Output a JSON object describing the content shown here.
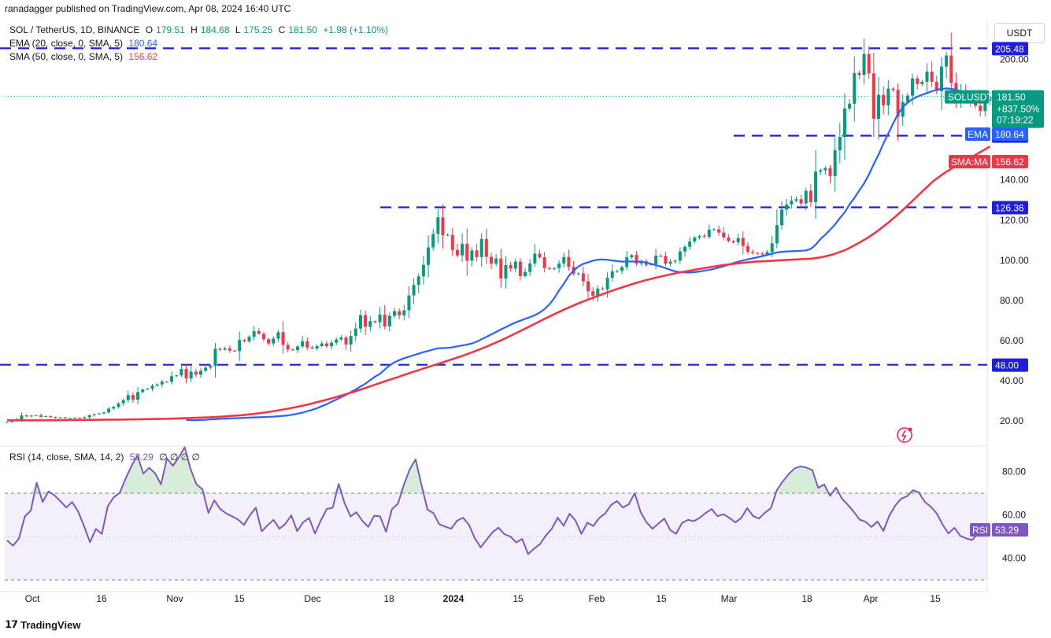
{
  "header": {
    "credit": "ranadagger published on TradingView.com, Apr 08, 2024 16:40 UTC",
    "currency_button": "USDT"
  },
  "legend": {
    "title": "SOL / TetherUS, 1D, BINANCE",
    "open_label": "O",
    "open": "179.51",
    "high_label": "H",
    "high": "184.68",
    "low_label": "L",
    "low": "175.25",
    "close_label": "C",
    "close": "181.50",
    "change": "+1.98 (+1.10%)",
    "ema_label": "EMA (20, close, 0, SMA, 5)",
    "ema_value": "180.64",
    "sma_label": "SMA (50, close, 0, SMA, 5)",
    "sma_value": "156.62",
    "rsi_label": "RSI (14, close, SMA, 14, 2)",
    "rsi_value": "53.29",
    "rsi_extra": "∅ ∅ ∅ ∅"
  },
  "footer": {
    "brand": "TradingView"
  },
  "colors": {
    "up": "#089981",
    "down": "#f23645",
    "ema": "#2962ff",
    "sma": "#f23645",
    "rsi": "#7e57c2",
    "level": "#1e1edc"
  },
  "chart_data": [
    {
      "type": "candlestick",
      "symbol": "SOLUSDT",
      "x_ticks": [
        "Oct",
        "16",
        "Nov",
        "15",
        "Dec",
        "18",
        "2024",
        "15",
        "Feb",
        "15",
        "Mar",
        "18",
        "Apr",
        "15"
      ],
      "y_ticks": [
        "20.00",
        "40.00",
        "60.00",
        "80.00",
        "100.00",
        "120.00",
        "140.00",
        "160.00",
        "180.00",
        "200.00"
      ],
      "ylim": [
        0,
        215
      ],
      "price_tag": {
        "label": "SOLUSDT",
        "value": "181.50",
        "change": "+837.50%",
        "countdown": "07:19:22"
      },
      "ema_tag": {
        "label": "EMA",
        "value": "180.64"
      },
      "sma_tag": {
        "label": "SMA:MA",
        "value": "156.62"
      },
      "levels": [
        {
          "value": 205.48,
          "label": "205.48"
        },
        {
          "value": 162.0,
          "label": "162.00"
        },
        {
          "value": 126.36,
          "label": "126.36"
        },
        {
          "value": 48.0,
          "label": "48.00"
        }
      ],
      "closes": [
        19.5,
        19.9,
        20.8,
        22.8,
        22.3,
        22.7,
        22.9,
        22.1,
        22.4,
        22.0,
        21.6,
        21.8,
        21.5,
        21.5,
        21.7,
        21.5,
        21.9,
        22.9,
        23.4,
        23.8,
        24.3,
        26.2,
        27.1,
        28.8,
        30.4,
        32.9,
        30.6,
        34.4,
        35.7,
        36.1,
        37.6,
        38.2,
        39.7,
        39.5,
        42.3,
        42.7,
        45.9,
        41.2,
        44.6,
        43.1,
        45.0,
        46.6,
        47.5,
        56.0,
        55.5,
        56.2,
        55.0,
        54.8,
        60.3,
        59.7,
        61.9,
        64.7,
        63.4,
        60.7,
        58.6,
        61.0,
        64.2,
        57.9,
        55.6,
        55.3,
        57.1,
        59.7,
        56.6,
        56.1,
        57.3,
        58.6,
        57.2,
        59.0,
        60.6,
        61.6,
        58.1,
        62.3,
        66.0,
        72.7,
        66.9,
        69.7,
        69.2,
        73.0,
        67.1,
        72.4,
        74.7,
        72.6,
        75.1,
        82.5,
        87.7,
        92.0,
        97.7,
        106.4,
        113.1,
        121.4,
        112.5,
        112.6,
        105.1,
        102.4,
        108.2,
        99.8,
        104.9,
        101.6,
        110.6,
        101.7,
        98.3,
        100.9,
        90.9,
        97.6,
        95.9,
        99.3,
        92.1,
        94.2,
        98.4,
        103.3,
        101.5,
        96.1,
        95.7,
        96.1,
        98.4,
        101.6,
        96.7,
        93.3,
        93.5,
        89.5,
        84.6,
        82.4,
        85.9,
        85.5,
        91.3,
        94.5,
        94.7,
        96.6,
        101.5,
        102.6,
        98.4,
        99.5,
        97.7,
        98.0,
        102.3,
        102.2,
        98.3,
        99.3,
        99.8,
        104.4,
        106.7,
        109.4,
        111.3,
        112.0,
        111.6,
        115.3,
        115.4,
        113.8,
        111.4,
        109.6,
        108.9,
        111.1,
        107.1,
        104.2,
        103.7,
        103.4,
        102.9,
        104.1,
        108.4,
        117.5,
        125.2,
        127.8,
        129.6,
        130.4,
        128.3,
        134.6,
        128.9,
        144.1,
        144.8,
        145.9,
        141.9,
        154.7,
        161.4,
        175.5,
        177.9,
        193.2,
        192.2,
        202.6,
        193.0,
        170.4,
        182.3,
        177.1,
        185.4,
        184.8,
        171.5,
        178.8,
        181.9,
        190.5,
        187.7,
        188.8,
        193.9,
        188.8,
        184.2,
        196.4,
        201.9,
        188.3,
        179.9,
        183.8,
        181.2,
        178.7,
        176.9,
        174.2,
        179.4,
        181.5
      ],
      "ema20": [
        20.5,
        20.4,
        20.4,
        20.5,
        20.6,
        20.8,
        20.9,
        21.1,
        21.2,
        21.3,
        21.4,
        21.5,
        21.6,
        21.7,
        21.8,
        21.9,
        22.0,
        22.1,
        22.2,
        22.4,
        22.6,
        22.8,
        23.2,
        23.7,
        24.2,
        24.9,
        25.6,
        26.4,
        27.4,
        28.4,
        29.6,
        30.7,
        31.9,
        33.0,
        34.4,
        35.7,
        37.2,
        38.6,
        40.4,
        42.1,
        43.5,
        45.6,
        47.7,
        49.2,
        50.3,
        51.3,
        52.0,
        52.8,
        53.5,
        54.3,
        54.9,
        55.6,
        56.2,
        56.3,
        56.4,
        56.7,
        57.2,
        57.6,
        58.0,
        58.6,
        59.5,
        60.7,
        61.9,
        63.1,
        64.3,
        65.6,
        66.7,
        67.9,
        69.0,
        69.9,
        70.8,
        71.7,
        72.7,
        74.0,
        75.7,
        78.0,
        81.1,
        85.0,
        88.4,
        92.2,
        94.8,
        96.9,
        98.2,
        99.0,
        99.8,
        100.3,
        100.4,
        100.2,
        99.9,
        99.6,
        99.3,
        99.4,
        99.4,
        99.3,
        99.3,
        98.9,
        98.2,
        97.6,
        96.9,
        96.1,
        95.2,
        94.5,
        94.1,
        93.9,
        93.9,
        94.1,
        94.4,
        94.8,
        95.2,
        95.7,
        96.4,
        97.0,
        97.8,
        98.6,
        99.3,
        99.9,
        100.5,
        101.0,
        101.5,
        102.1,
        102.7,
        103.3,
        103.9,
        104.2,
        104.4,
        104.5,
        104.6,
        104.7,
        104.9,
        105.7,
        107.7,
        110.6,
        112.8,
        115.2,
        117.8,
        121.0,
        123.9,
        127.8,
        131.0,
        134.7,
        138.2,
        142.7,
        147.9,
        152.6,
        158.2,
        163.0,
        168.1,
        172.7,
        176.2,
        178.5,
        180.2,
        181.4,
        182.4,
        183.2,
        184.1,
        184.9,
        185.3,
        185.5,
        185.3,
        184.9,
        184.1,
        182.9,
        181.9,
        181.3,
        180.9,
        180.7,
        180.6
      ],
      "sma50": [
        20.4,
        20.4,
        20.4,
        20.4,
        20.4,
        20.5,
        20.5,
        20.6,
        20.6,
        20.7,
        20.7,
        20.8,
        20.9,
        21.0,
        21.1,
        21.2,
        21.4,
        21.6,
        21.8,
        22.1,
        22.5,
        22.9,
        23.5,
        24.2,
        25.0,
        26.0,
        27.1,
        28.3,
        29.7,
        31.2,
        32.8,
        34.5,
        36.3,
        38.2,
        40.1,
        41.9,
        43.8,
        45.6,
        47.4,
        49.2,
        51.0,
        52.9,
        55.0,
        57.2,
        59.6,
        62.2,
        64.9,
        67.7,
        70.5,
        73.2,
        75.8,
        78.2,
        80.4,
        82.5,
        84.5,
        86.4,
        88.2,
        89.8,
        91.2,
        92.5,
        93.7,
        94.7,
        95.7,
        96.6,
        97.5,
        98.2,
        98.8,
        99.3,
        99.6,
        99.9,
        100.2,
        100.5,
        100.8,
        101.6,
        103.0,
        105.0,
        107.8,
        111.0,
        114.8,
        119.2,
        124.0,
        129.2,
        134.6,
        139.7,
        143.7,
        147.1,
        150.2,
        153.4,
        156.6
      ]
    },
    {
      "type": "line",
      "series": [
        {
          "name": "RSI",
          "values": [
            48.2,
            45.8,
            49.0,
            59.3,
            62.0,
            74.8,
            66.0,
            70.8,
            69.0,
            66.3,
            63.4,
            65.9,
            61.6,
            54.8,
            47.4,
            53.5,
            51.2,
            64.0,
            68.1,
            70.1,
            76.6,
            82.5,
            87.4,
            79.1,
            81.7,
            79.2,
            74.1,
            86.1,
            82.7,
            86.5,
            91.2,
            81.1,
            74.0,
            71.8,
            60.9,
            66.7,
            62.7,
            60.7,
            59.3,
            57.9,
            55.4,
            59.8,
            63.3,
            52.4,
            55.2,
            57.7,
            53.6,
            55.9,
            59.8,
            52.5,
            56.6,
            58.6,
            51.4,
            57.5,
            62.7,
            63.3,
            74.3,
            65.4,
            59.3,
            61.2,
            57.3,
            54.5,
            59.6,
            59.3,
            52.2,
            62.7,
            65.1,
            73.8,
            81.0,
            85.6,
            73.6,
            62.4,
            60.8,
            55.7,
            54.6,
            53.6,
            57.3,
            58.7,
            55.5,
            49.2,
            45.0,
            48.6,
            52.0,
            54.1,
            51.1,
            50.0,
            47.3,
            48.9,
            41.9,
            44.4,
            46.5,
            50.5,
            53.6,
            58.7,
            55.0,
            60.5,
            57.4,
            51.2,
            56.4,
            54.9,
            58.6,
            60.6,
            64.5,
            66.4,
            63.4,
            64.9,
            70.0,
            61.3,
            56.5,
            53.6,
            56.0,
            58.3,
            53.0,
            51.3,
            56.3,
            57.7,
            57.1,
            58.7,
            60.9,
            62.7,
            59.4,
            60.3,
            58.6,
            56.5,
            58.6,
            63.1,
            59.5,
            58.3,
            61.0,
            63.1,
            71.4,
            75.4,
            78.8,
            81.5,
            82.4,
            81.8,
            80.7,
            72.5,
            74.1,
            68.8,
            72.6,
            67.5,
            64.6,
            61.4,
            57.8,
            56.8,
            54.4,
            56.9,
            52.6,
            59.6,
            64.3,
            67.4,
            68.6,
            71.4,
            70.3,
            66.0,
            63.8,
            60.7,
            55.5,
            51.4,
            54.1,
            50.3,
            49.1,
            48.4,
            51.5,
            52.2,
            53.3
          ]
        }
      ],
      "levels": [
        30,
        70
      ],
      "y_ticks": [
        "40.00",
        "60.00",
        "80.00"
      ],
      "ylim": [
        27,
        93
      ],
      "tag": {
        "label": "RSI",
        "value": "53.29"
      }
    }
  ]
}
